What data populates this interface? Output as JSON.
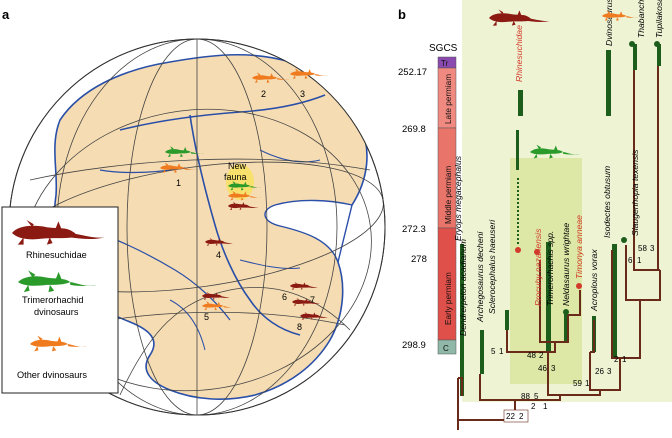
{
  "panel_a": {
    "label": "a",
    "new_fauna": [
      "New",
      "fauna"
    ],
    "locality_numbers": [
      "1",
      "2",
      "3",
      "4",
      "5",
      "6",
      "7",
      "8"
    ],
    "legend": [
      {
        "label": "Rhinesuchidae",
        "color": "#8b1a12",
        "icon": "rhinesuchid-silhouette"
      },
      {
        "label": "Trimerorhachid dvinosaurs",
        "lines": [
          "Trimerorhachid",
          "dvinosaurs"
        ],
        "color": "#2a9a2a",
        "icon": "trimerorhachid-silhouette"
      },
      {
        "label": "Other dvinosaurs",
        "color": "#f07a1e",
        "icon": "dvinosaur-silhouette"
      }
    ],
    "colors": {
      "land": "#f5dcb2",
      "ocean": "#ffffff",
      "coast": "#2a4fa8",
      "grid": "#444444",
      "highlight": "#f8e060"
    }
  },
  "panel_b": {
    "label": "b",
    "timescale_title": "SGCS",
    "ages": [
      "252.17",
      "269.8",
      "272.3",
      "278",
      "298.9"
    ],
    "periods": [
      {
        "label": "Tr",
        "color": "#8a4ab0"
      },
      {
        "label": "Late permiam",
        "color": "#f08a80"
      },
      {
        "label": "Middle permiam",
        "color": "#e8746a"
      },
      {
        "label": "Early permiam",
        "color": "#e0504a"
      },
      {
        "label": "C",
        "color": "#8fb8a8"
      }
    ],
    "taxa": [
      {
        "name": "Eryops megacephalus",
        "color": "#111111"
      },
      {
        "name": "Dendrerpeton acadianum",
        "color": "#111111"
      },
      {
        "name": "Archegosaurus decheni",
        "color": "#111111"
      },
      {
        "name": "Sclerocephalus haeuseri",
        "color": "#111111"
      },
      {
        "name": "Rhinesuchidae",
        "color": "#d23a2a"
      },
      {
        "name": "Procuhy nazariensis",
        "color": "#d23a2a"
      },
      {
        "name": "Trimerorhachis spp.",
        "color": "#111111"
      },
      {
        "name": "Neldasaurus wrightae",
        "color": "#111111"
      },
      {
        "name": "Timonya anneae",
        "color": "#d23a2a"
      },
      {
        "name": "Acroplous vorax",
        "color": "#111111"
      },
      {
        "name": "Isodectes obtusum",
        "color": "#111111"
      },
      {
        "name": "Dvinosaurus primus",
        "color": "#111111"
      },
      {
        "name": "Slaugenhopia texensis",
        "color": "#111111"
      },
      {
        "name": "Thabanchuia oomie",
        "color": "#111111"
      },
      {
        "name": "Tupilakosaurus spp.",
        "color": "#111111"
      }
    ],
    "node_support": [
      {
        "a": "22",
        "b": "2"
      },
      {
        "a": "2",
        "b": "1"
      },
      {
        "a": "88",
        "b": "5"
      },
      {
        "a": "5",
        "b": "1"
      },
      {
        "a": "48",
        "b": "2"
      },
      {
        "a": "46",
        "b": "3"
      },
      {
        "a": "59",
        "b": "1"
      },
      {
        "a": "26",
        "b": "3"
      },
      {
        "a": "2",
        "b": "1"
      },
      {
        "a": "6",
        "b": "1"
      },
      {
        "a": "58",
        "b": "3"
      }
    ],
    "colors": {
      "branch": "#6a2a1a",
      "range": "#1d5e1d",
      "highlight_light": "#eef3d4",
      "highlight_dark": "#dde7a6",
      "red_taxon": "#d23a2a"
    }
  }
}
